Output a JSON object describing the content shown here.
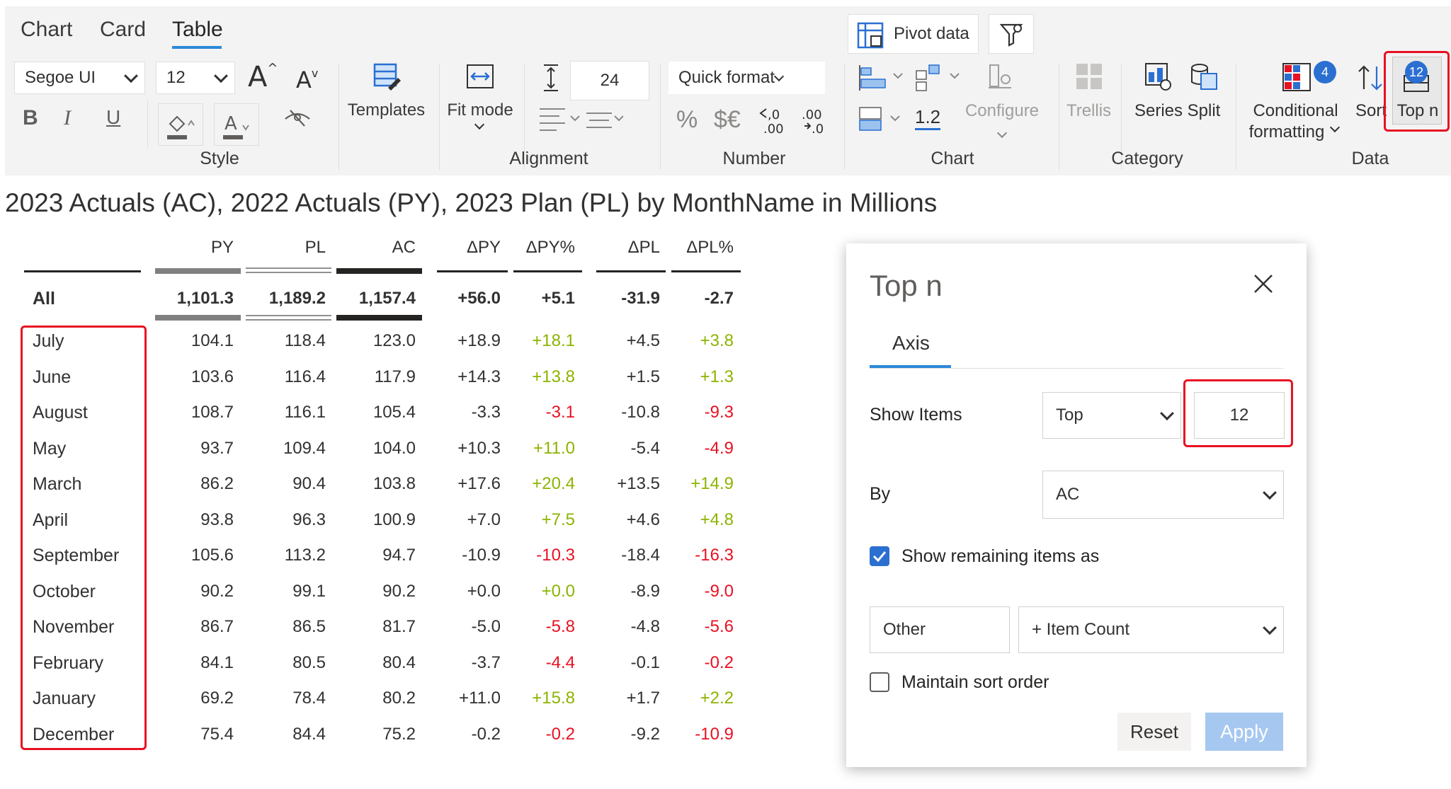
{
  "ribbon": {
    "tabs": [
      "Chart",
      "Card",
      "Table"
    ],
    "active_tab": "Table",
    "pivot_data_label": "Pivot data",
    "font_family_value": "Segoe UI",
    "font_size_value": "12",
    "templates_label": "Templates",
    "fit_mode_label": "Fit mode",
    "row_height_value": "24",
    "quick_format_label": "Quick format",
    "number_icons": [
      "%",
      "$€"
    ],
    "decimals_label": "1.2",
    "configure_label": "Configure",
    "trellis_label": "Trellis",
    "series_label": "Series",
    "split_label": "Split",
    "conditional_formatting_label": [
      "Conditional",
      "formatting"
    ],
    "conditional_formatting_badge": "4",
    "sort_label": "Sort",
    "top_n_label": "Top n",
    "top_n_badge": "12",
    "groups": [
      "Style",
      "Alignment",
      "Number",
      "Chart",
      "Category",
      "Data"
    ],
    "colors": {
      "background": "#f3f3f3",
      "accent": "#2b88d8",
      "highlight": "#e81123"
    }
  },
  "title": "2023 Actuals (AC), 2022 Actuals (PY), 2023 Plan (PL) by MonthName in Millions",
  "table": {
    "columns": [
      "PY",
      "PL",
      "AC",
      "ΔPY",
      "ΔPY%",
      "ΔPL",
      "ΔPL%"
    ],
    "total": {
      "label": "All",
      "values": [
        "1,101.3",
        "1,189.2",
        "1,157.4",
        "+56.0",
        "+5.1",
        "-31.9",
        "-2.7"
      ]
    },
    "rows": [
      {
        "label": "July",
        "values": [
          "104.1",
          "118.4",
          "123.0",
          "+18.9",
          "+18.1",
          "+4.5",
          "+3.8"
        ]
      },
      {
        "label": "June",
        "values": [
          "103.6",
          "116.4",
          "117.9",
          "+14.3",
          "+13.8",
          "+1.5",
          "+1.3"
        ]
      },
      {
        "label": "August",
        "values": [
          "108.7",
          "116.1",
          "105.4",
          "-3.3",
          "-3.1",
          "-10.8",
          "-9.3"
        ]
      },
      {
        "label": "May",
        "values": [
          "93.7",
          "109.4",
          "104.0",
          "+10.3",
          "+11.0",
          "-5.4",
          "-4.9"
        ]
      },
      {
        "label": "March",
        "values": [
          "86.2",
          "90.4",
          "103.8",
          "+17.6",
          "+20.4",
          "+13.5",
          "+14.9"
        ]
      },
      {
        "label": "April",
        "values": [
          "93.8",
          "96.3",
          "100.9",
          "+7.0",
          "+7.5",
          "+4.6",
          "+4.8"
        ]
      },
      {
        "label": "September",
        "values": [
          "105.6",
          "113.2",
          "94.7",
          "-10.9",
          "-10.3",
          "-18.4",
          "-16.3"
        ]
      },
      {
        "label": "October",
        "values": [
          "90.2",
          "99.1",
          "90.2",
          "+0.0",
          "+0.0",
          "-8.9",
          "-9.0"
        ]
      },
      {
        "label": "November",
        "values": [
          "86.7",
          "86.5",
          "81.7",
          "-5.0",
          "-5.8",
          "-4.8",
          "-5.6"
        ]
      },
      {
        "label": "February",
        "values": [
          "84.1",
          "80.5",
          "80.4",
          "-3.7",
          "-4.4",
          "-0.1",
          "-0.2"
        ]
      },
      {
        "label": "January",
        "values": [
          "69.2",
          "78.4",
          "80.2",
          "+11.0",
          "+15.8",
          "+1.7",
          "+2.2"
        ]
      },
      {
        "label": "December",
        "values": [
          "75.4",
          "84.4",
          "75.2",
          "-0.2",
          "-0.2",
          "-9.2",
          "-10.9"
        ]
      }
    ],
    "colors": {
      "positive": "#8cb400",
      "negative": "#e81123",
      "py_bar": "#808080",
      "ac_bar": "#252423"
    }
  },
  "dialog": {
    "title": "Top n",
    "tab": "Axis",
    "show_items_label": "Show Items",
    "show_items_mode": "Top",
    "show_items_count": "12",
    "by_label": "By",
    "by_value": "AC",
    "show_remaining_label": "Show remaining items as",
    "show_remaining_checked": true,
    "other_value": "Other",
    "item_count_value": "+ Item Count",
    "maintain_sort_label": "Maintain sort order",
    "maintain_sort_checked": false,
    "reset_label": "Reset",
    "apply_label": "Apply"
  }
}
